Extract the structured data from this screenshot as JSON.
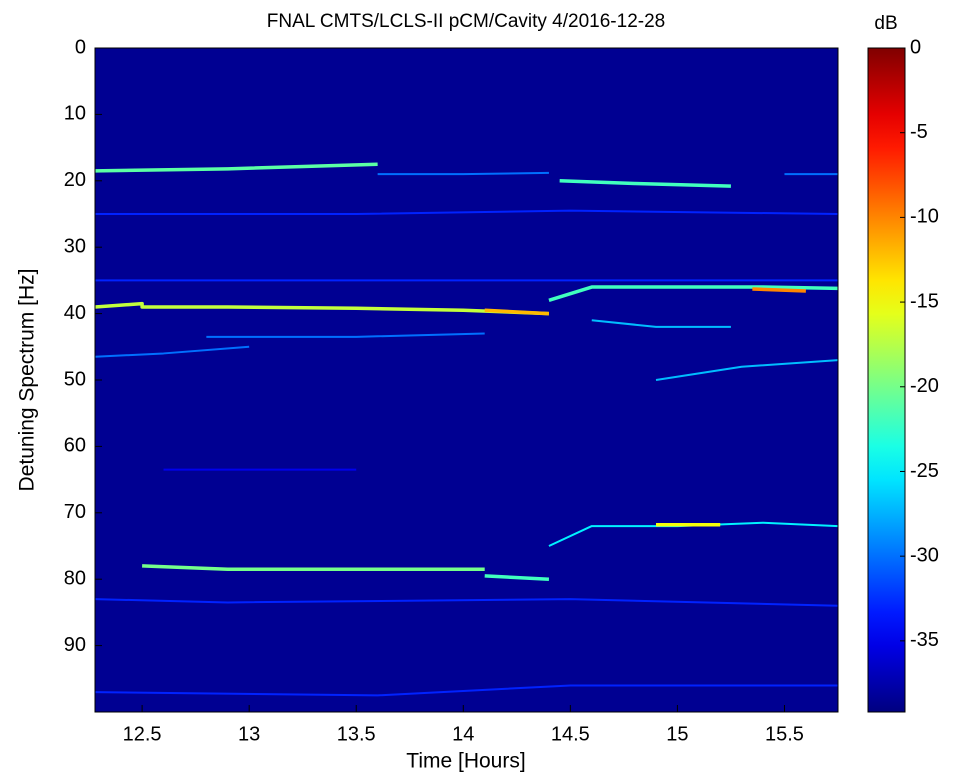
{
  "chart_data": {
    "type": "heatmap",
    "title": "FNAL CMTS/LCLS-II pCM/Cavity 4/2016-12-28",
    "x_label": "Time [Hours]",
    "y_label": "Detuning Spectrum [Hz]",
    "colorbar_label": "dB",
    "colormap": "jet",
    "xlim": [
      12.28,
      15.75
    ],
    "ylim": [
      100,
      0
    ],
    "xticks": [
      12.5,
      13,
      13.5,
      14,
      14.5,
      15,
      15.5
    ],
    "yticks": [
      0,
      10,
      20,
      30,
      40,
      50,
      60,
      70,
      80,
      90
    ],
    "clim": [
      -39.2,
      0
    ],
    "cticks": [
      0,
      -5,
      -10,
      -15,
      -20,
      -25,
      -30,
      -35
    ],
    "background": -38.5,
    "series": [
      {
        "x": [
          12.28,
          12.9,
          13.6
        ],
        "values": [
          18.5,
          18.2,
          17.5
        ],
        "level": -21
      },
      {
        "x": [
          13.6,
          14.0,
          14.4
        ],
        "values": [
          19,
          19,
          18.8
        ],
        "level": -30
      },
      {
        "x": [
          14.45,
          14.8,
          15.25
        ],
        "values": [
          20,
          20.4,
          20.8
        ],
        "level": -22
      },
      {
        "x": [
          15.5,
          15.75
        ],
        "values": [
          19,
          19
        ],
        "level": -30
      },
      {
        "x": [
          12.28,
          12.5,
          12.5,
          12.9,
          13.5,
          14.0,
          14.4
        ],
        "values": [
          39,
          38.5,
          39,
          39,
          39.2,
          39.5,
          40
        ],
        "level": -17
      },
      {
        "x": [
          14.1,
          14.4
        ],
        "values": [
          39.5,
          40
        ],
        "level": -12
      },
      {
        "x": [
          14.4,
          14.6,
          15.0,
          15.4,
          15.75
        ],
        "values": [
          38,
          36,
          36,
          36,
          36.2
        ],
        "level": -22
      },
      {
        "x": [
          15.35,
          15.6
        ],
        "values": [
          36.3,
          36.6
        ],
        "level": -10
      },
      {
        "x": [
          14.6,
          14.9,
          15.25
        ],
        "values": [
          41,
          42,
          42
        ],
        "level": -27
      },
      {
        "x": [
          12.8,
          13.5,
          14.1
        ],
        "values": [
          43.5,
          43.5,
          43
        ],
        "level": -30
      },
      {
        "x": [
          12.28,
          12.6,
          13.0
        ],
        "values": [
          46.5,
          46,
          45
        ],
        "level": -30
      },
      {
        "x": [
          14.9,
          15.3,
          15.75
        ],
        "values": [
          50,
          48,
          47
        ],
        "level": -27
      },
      {
        "x": [
          12.28,
          13.5,
          14.5,
          15.75
        ],
        "values": [
          25,
          25,
          24.5,
          25
        ],
        "level": -33
      },
      {
        "x": [
          12.28,
          13.5,
          14.5,
          15.75
        ],
        "values": [
          35,
          35,
          35,
          35
        ],
        "level": -33
      },
      {
        "x": [
          12.28,
          12.9,
          14.5,
          15.75
        ],
        "values": [
          83,
          83.5,
          83,
          84
        ],
        "level": -33
      },
      {
        "x": [
          12.28,
          13.6,
          14.5,
          15.75
        ],
        "values": [
          97,
          97.5,
          96,
          96
        ],
        "level": -33
      },
      {
        "x": [
          12.6,
          13.5
        ],
        "values": [
          63.5,
          63.5
        ],
        "level": -35
      },
      {
        "x": [
          12.5,
          12.9,
          13.5,
          14.1
        ],
        "values": [
          78,
          78.5,
          78.5,
          78.5
        ],
        "level": -20
      },
      {
        "x": [
          14.1,
          14.4
        ],
        "values": [
          79.5,
          80
        ],
        "level": -22
      },
      {
        "x": [
          14.4,
          14.6,
          15.0,
          15.4,
          15.75
        ],
        "values": [
          75,
          72,
          72,
          71.5,
          72
        ],
        "level": -25
      },
      {
        "x": [
          14.9,
          15.2
        ],
        "values": [
          71.8,
          71.8
        ],
        "level": -15
      }
    ]
  }
}
